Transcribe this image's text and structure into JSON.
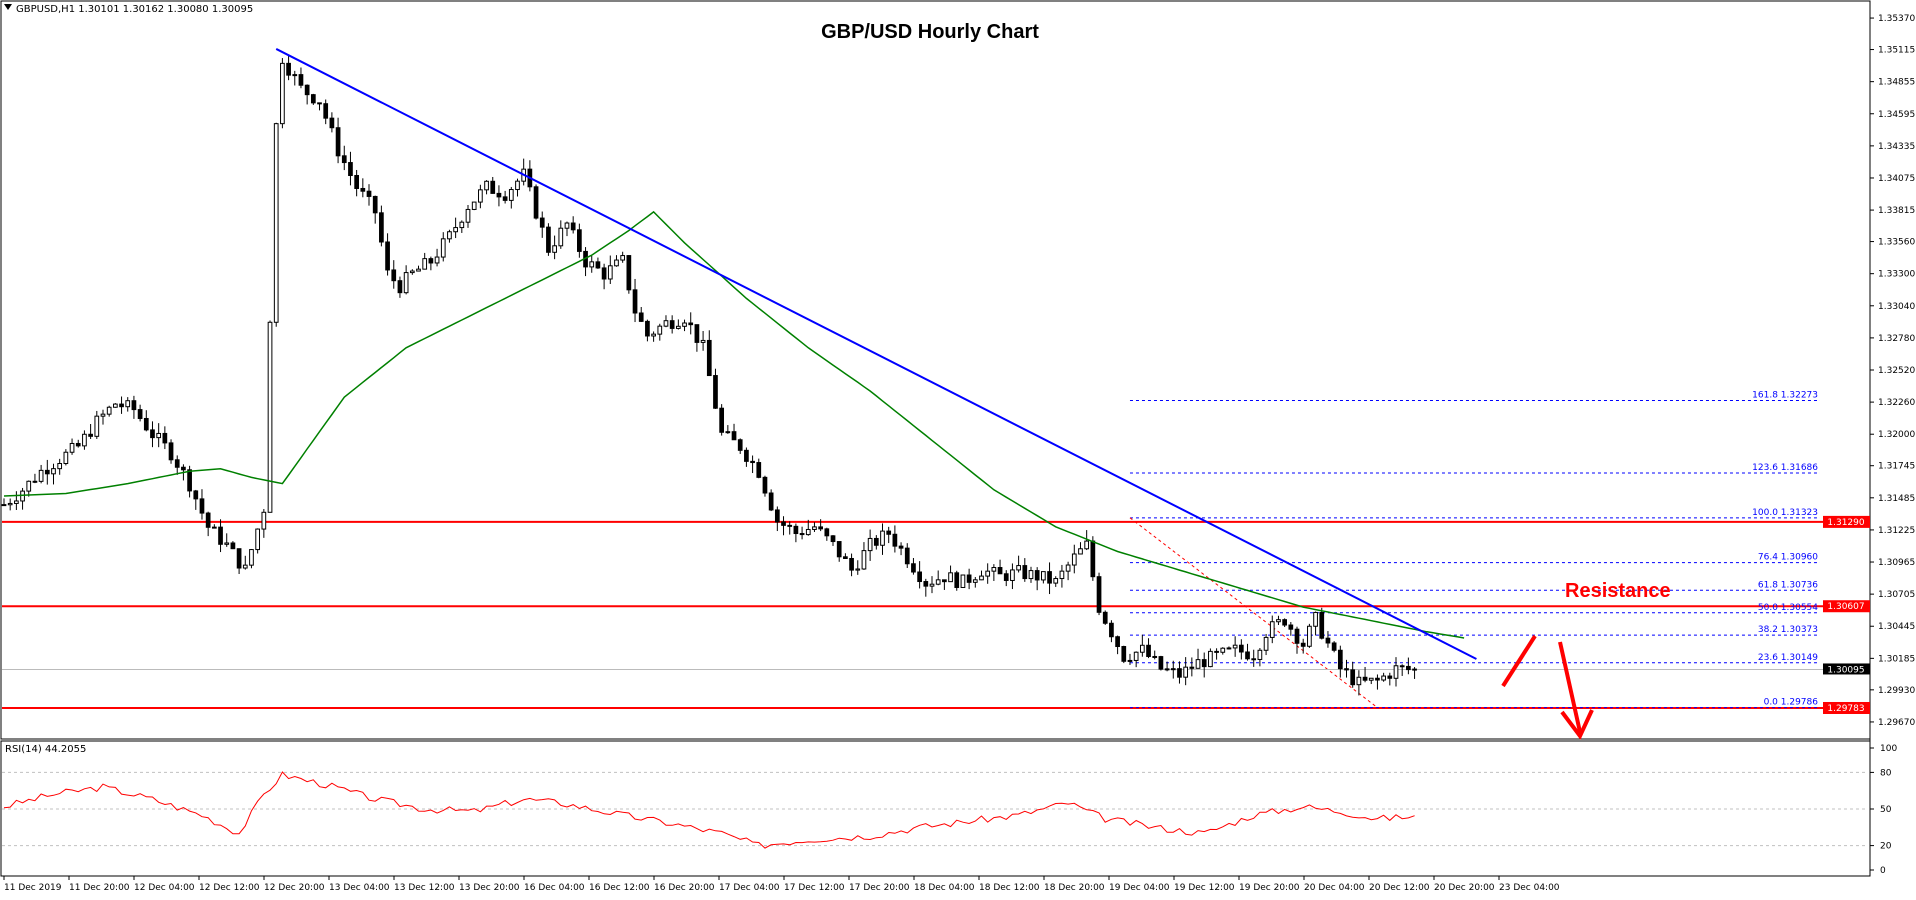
{
  "chart_header": {
    "symbol_info": "GBPUSD,H1  1.30101 1.30162 1.30080 1.30095",
    "title": "GBP/USD Hourly Chart",
    "current_price": "1.30095"
  },
  "annotations": {
    "resistance_label": "Resistance"
  },
  "colors": {
    "candle": "#000000",
    "ma": "#008000",
    "trendline": "#0000ff",
    "horizontal_levels": "#ff0000",
    "rsi": "#ff0000",
    "fib": "#0000ff",
    "arrows": "#ff0000"
  },
  "rsi_panel": {
    "label": "RSI(14) 44.2055",
    "levels": [
      "100",
      "80",
      "50",
      "20",
      "0"
    ]
  },
  "chart_data": {
    "type": "candlestick",
    "title": "GBP/USD Hourly Chart",
    "price_ticks": [
      "1.35370",
      "1.35115",
      "1.34855",
      "1.34595",
      "1.34335",
      "1.34075",
      "1.33815",
      "1.33560",
      "1.33300",
      "1.33040",
      "1.32780",
      "1.32520",
      "1.32260",
      "1.32000",
      "1.31745",
      "1.31485",
      "1.31225",
      "1.30965",
      "1.30705",
      "1.30445",
      "1.30185",
      "1.29930",
      "1.29670"
    ],
    "ylim": [
      1.2954,
      1.355
    ],
    "x_labels": [
      "11 Dec 2019",
      "11 Dec 20:00",
      "12 Dec 04:00",
      "12 Dec 12:00",
      "12 Dec 20:00",
      "13 Dec 04:00",
      "13 Dec 12:00",
      "13 Dec 20:00",
      "16 Dec 04:00",
      "16 Dec 12:00",
      "16 Dec 20:00",
      "17 Dec 04:00",
      "17 Dec 12:00",
      "17 Dec 20:00",
      "18 Dec 04:00",
      "18 Dec 12:00",
      "18 Dec 20:00",
      "19 Dec 04:00",
      "19 Dec 12:00",
      "19 Dec 20:00",
      "20 Dec 04:00",
      "20 Dec 12:00",
      "20 Dec 20:00",
      "23 Dec 04:00"
    ],
    "price_path": [
      [
        0,
        1.3143
      ],
      [
        3,
        1.3155
      ],
      [
        6,
        1.317
      ],
      [
        9,
        1.318
      ],
      [
        12,
        1.319
      ],
      [
        15,
        1.321
      ],
      [
        18,
        1.3225
      ],
      [
        21,
        1.322
      ],
      [
        24,
        1.32
      ],
      [
        27,
        1.3185
      ],
      [
        30,
        1.316
      ],
      [
        33,
        1.3125
      ],
      [
        36,
        1.311
      ],
      [
        39,
        1.309
      ],
      [
        42,
        1.314
      ],
      [
        44,
        1.345
      ],
      [
        45,
        1.3505
      ],
      [
        48,
        1.348
      ],
      [
        51,
        1.347
      ],
      [
        54,
        1.343
      ],
      [
        57,
        1.34
      ],
      [
        60,
        1.338
      ],
      [
        62,
        1.333
      ],
      [
        64,
        1.332
      ],
      [
        66,
        1.333
      ],
      [
        69,
        1.334
      ],
      [
        72,
        1.336
      ],
      [
        75,
        1.3385
      ],
      [
        78,
        1.34
      ],
      [
        81,
        1.3395
      ],
      [
        84,
        1.341
      ],
      [
        86,
        1.338
      ],
      [
        88,
        1.335
      ],
      [
        91,
        1.337
      ],
      [
        94,
        1.334
      ],
      [
        97,
        1.333
      ],
      [
        100,
        1.334
      ],
      [
        102,
        1.33
      ],
      [
        104,
        1.328
      ],
      [
        107,
        1.329
      ],
      [
        110,
        1.3295
      ],
      [
        113,
        1.327
      ],
      [
        116,
        1.32
      ],
      [
        119,
        1.319
      ],
      [
        122,
        1.317
      ],
      [
        125,
        1.313
      ],
      [
        128,
        1.312
      ],
      [
        131,
        1.3125
      ],
      [
        134,
        1.311
      ],
      [
        137,
        1.309
      ],
      [
        140,
        1.311
      ],
      [
        143,
        1.312
      ],
      [
        146,
        1.31
      ],
      [
        149,
        1.308
      ],
      [
        152,
        1.3085
      ],
      [
        155,
        1.308
      ],
      [
        158,
        1.309
      ],
      [
        161,
        1.3085
      ],
      [
        164,
        1.3088
      ],
      [
        167,
        1.3085
      ],
      [
        170,
        1.308
      ],
      [
        173,
        1.31
      ],
      [
        175,
        1.311
      ],
      [
        177,
        1.306
      ],
      [
        179,
        1.304
      ],
      [
        181,
        1.302
      ],
      [
        184,
        1.3025
      ],
      [
        187,
        1.301
      ],
      [
        190,
        1.3005
      ],
      [
        193,
        1.3015
      ],
      [
        196,
        1.302
      ],
      [
        199,
        1.3025
      ],
      [
        202,
        1.3022
      ],
      [
        204,
        1.304
      ],
      [
        207,
        1.305
      ],
      [
        210,
        1.303
      ],
      [
        212,
        1.305
      ],
      [
        214,
        1.303
      ],
      [
        216,
        1.301
      ],
      [
        219,
        1.2998
      ],
      [
        222,
        1.3
      ],
      [
        225,
        1.301
      ],
      [
        228,
        1.3009
      ]
    ],
    "ma_series": [
      [
        0,
        1.315
      ],
      [
        10,
        1.3152
      ],
      [
        20,
        1.316
      ],
      [
        30,
        1.317
      ],
      [
        35,
        1.3172
      ],
      [
        40,
        1.3165
      ],
      [
        45,
        1.316
      ],
      [
        55,
        1.323
      ],
      [
        65,
        1.327
      ],
      [
        75,
        1.3295
      ],
      [
        85,
        1.332
      ],
      [
        95,
        1.3345
      ],
      [
        101,
        1.3365
      ],
      [
        105,
        1.338
      ],
      [
        110,
        1.3355
      ],
      [
        120,
        1.331
      ],
      [
        130,
        1.327
      ],
      [
        140,
        1.3235
      ],
      [
        150,
        1.3195
      ],
      [
        160,
        1.3155
      ],
      [
        170,
        1.3125
      ],
      [
        180,
        1.3105
      ],
      [
        190,
        1.309
      ],
      [
        200,
        1.3075
      ],
      [
        210,
        1.306
      ],
      [
        220,
        1.305
      ],
      [
        230,
        1.304
      ],
      [
        236,
        1.3035
      ]
    ],
    "horizontal_levels": [
      {
        "label": "1.31290",
        "value": 1.3129
      },
      {
        "label": "1.30607",
        "value": 1.30607
      },
      {
        "label": "1.29783",
        "value": 1.29783
      }
    ],
    "fib_levels": [
      {
        "label": "161.8  1.32273",
        "value": 1.32273
      },
      {
        "label": "123.6  1.31686",
        "value": 1.31686
      },
      {
        "label": "100.0  1.31323",
        "value": 1.31323
      },
      {
        "label": "76.4  1.30960",
        "value": 1.3096
      },
      {
        "label": "61.8  1.30736",
        "value": 1.30736
      },
      {
        "label": "50.0  1.30554",
        "value": 1.30554
      },
      {
        "label": "38.2  1.30373",
        "value": 1.30373
      },
      {
        "label": "23.6  1.30149",
        "value": 1.30149
      },
      {
        "label": "0.0  1.29786",
        "value": 1.29786
      }
    ],
    "trendline": {
      "from": [
        44,
        1.3512
      ],
      "to": [
        238,
        1.3018
      ]
    },
    "rsi_series": [
      [
        0,
        52
      ],
      [
        8,
        62
      ],
      [
        16,
        68
      ],
      [
        24,
        58
      ],
      [
        32,
        45
      ],
      [
        38,
        30
      ],
      [
        42,
        62
      ],
      [
        45,
        78
      ],
      [
        52,
        70
      ],
      [
        60,
        58
      ],
      [
        68,
        50
      ],
      [
        76,
        48
      ],
      [
        84,
        58
      ],
      [
        90,
        55
      ],
      [
        100,
        45
      ],
      [
        108,
        38
      ],
      [
        116,
        30
      ],
      [
        122,
        20
      ],
      [
        130,
        25
      ],
      [
        140,
        28
      ],
      [
        148,
        35
      ],
      [
        156,
        40
      ],
      [
        164,
        45
      ],
      [
        172,
        55
      ],
      [
        178,
        42
      ],
      [
        186,
        35
      ],
      [
        194,
        30
      ],
      [
        202,
        45
      ],
      [
        210,
        52
      ],
      [
        216,
        48
      ],
      [
        222,
        42
      ],
      [
        228,
        44
      ]
    ]
  }
}
